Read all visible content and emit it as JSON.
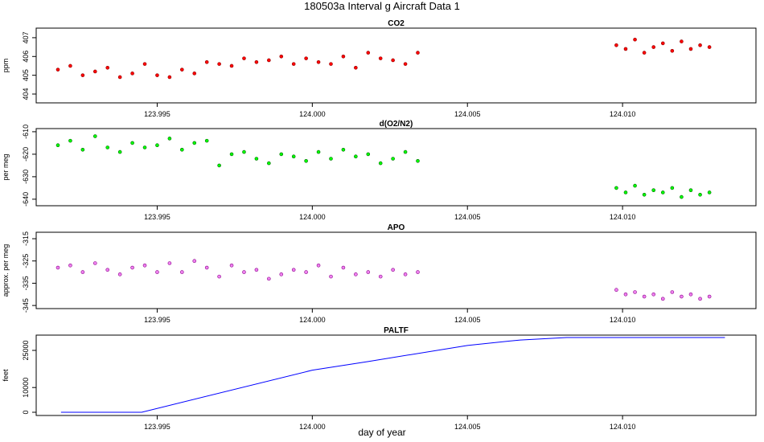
{
  "title": "180503a   Interval g Aircraft Data 1",
  "xlabel": "day of year",
  "chart_data": [
    {
      "type": "scatter",
      "title": "CO2",
      "ylabel": "ppm",
      "color": "#ff0000",
      "edge": "#8b0000",
      "x": [
        123.9918,
        123.9922,
        123.9926,
        123.993,
        123.9934,
        123.9938,
        123.9942,
        123.9946,
        123.995,
        123.9954,
        123.9958,
        123.9962,
        123.9966,
        123.997,
        123.9974,
        123.9978,
        123.9982,
        123.9986,
        123.999,
        123.9994,
        123.9998,
        124.0002,
        124.0006,
        124.001,
        124.0014,
        124.0018,
        124.0022,
        124.0026,
        124.003,
        124.0034,
        124.0098,
        124.0101,
        124.0104,
        124.0107,
        124.011,
        124.0113,
        124.0116,
        124.0119,
        124.0122,
        124.0125,
        124.0128
      ],
      "values": [
        405.3,
        405.5,
        405.0,
        405.2,
        405.4,
        404.9,
        405.1,
        405.6,
        405.0,
        404.9,
        405.3,
        405.1,
        405.7,
        405.6,
        405.5,
        405.9,
        405.7,
        405.8,
        406.0,
        405.6,
        405.9,
        405.7,
        405.6,
        406.0,
        405.4,
        406.2,
        405.9,
        405.8,
        405.6,
        406.2,
        406.6,
        406.4,
        406.9,
        406.2,
        406.5,
        406.7,
        406.3,
        406.8,
        406.4,
        406.6,
        406.5
      ],
      "xlim": [
        123.9911,
        124.0143
      ],
      "ylim": [
        403.53,
        407.51
      ],
      "xticks": [
        {
          "value": 123.995,
          "label": "123.995"
        },
        {
          "value": 124.0,
          "label": "124.000"
        },
        {
          "value": 124.005,
          "label": "124.005"
        },
        {
          "value": 124.01,
          "label": "124.010"
        }
      ],
      "yticks": [
        404,
        405,
        406,
        407
      ]
    },
    {
      "type": "scatter",
      "title": "d(O2/N2)",
      "ylabel": "per meg",
      "color": "#00ff00",
      "edge": "#006400",
      "x": [
        123.9918,
        123.9922,
        123.9926,
        123.993,
        123.9934,
        123.9938,
        123.9942,
        123.9946,
        123.995,
        123.9954,
        123.9958,
        123.9962,
        123.9966,
        123.997,
        123.9974,
        123.9978,
        123.9982,
        123.9986,
        123.999,
        123.9994,
        123.9998,
        124.0002,
        124.0006,
        124.001,
        124.0014,
        124.0018,
        124.0022,
        124.0026,
        124.003,
        124.0034,
        124.0098,
        124.0101,
        124.0104,
        124.0107,
        124.011,
        124.0113,
        124.0116,
        124.0119,
        124.0122,
        124.0125,
        124.0128
      ],
      "values": [
        -616,
        -614,
        -618,
        -612,
        -617,
        -619,
        -615,
        -617,
        -616,
        -613,
        -618,
        -615,
        -614,
        -625,
        -620,
        -619,
        -622,
        -624,
        -620,
        -621,
        -623,
        -619,
        -622,
        -618,
        -621,
        -620,
        -624,
        -622,
        -619,
        -623,
        -635,
        -637,
        -634,
        -638,
        -636,
        -637,
        -635,
        -639,
        -636,
        -638,
        -637
      ],
      "xlim": [
        123.9911,
        124.0143
      ],
      "ylim": [
        -642.9,
        -608.6
      ],
      "xticks": [
        {
          "value": 123.995,
          "label": "123.995"
        },
        {
          "value": 124.0,
          "label": "124.000"
        },
        {
          "value": 124.005,
          "label": "124.005"
        },
        {
          "value": 124.01,
          "label": "124.010"
        }
      ],
      "yticks": [
        -640,
        -630,
        -620,
        -610
      ]
    },
    {
      "type": "scatter",
      "title": "APO",
      "ylabel": "approx. per meg",
      "color": "#ee82ee",
      "edge": "#8b008b",
      "x": [
        123.9918,
        123.9922,
        123.9926,
        123.993,
        123.9934,
        123.9938,
        123.9942,
        123.9946,
        123.995,
        123.9954,
        123.9958,
        123.9962,
        123.9966,
        123.997,
        123.9974,
        123.9978,
        123.9982,
        123.9986,
        123.999,
        123.9994,
        123.9998,
        124.0002,
        124.0006,
        124.001,
        124.0014,
        124.0018,
        124.0022,
        124.0026,
        124.003,
        124.0034,
        124.0098,
        124.0101,
        124.0104,
        124.0107,
        124.011,
        124.0113,
        124.0116,
        124.0119,
        124.0122,
        124.0125,
        124.0128
      ],
      "values": [
        -328,
        -327,
        -330,
        -326,
        -329,
        -331,
        -328,
        -327,
        -330,
        -326,
        -330,
        -325,
        -328,
        -332,
        -327,
        -330,
        -329,
        -333,
        -331,
        -329,
        -330,
        -327,
        -332,
        -328,
        -331,
        -330,
        -332,
        -329,
        -331,
        -330,
        -338,
        -340,
        -339,
        -341,
        -340,
        -342,
        -339,
        -341,
        -340,
        -342,
        -341
      ],
      "xlim": [
        123.9911,
        124.0143
      ],
      "ylim": [
        -346.4,
        -312.1
      ],
      "xticks": [
        {
          "value": 123.995,
          "label": "123.995"
        },
        {
          "value": 124.0,
          "label": "124.000"
        },
        {
          "value": 124.005,
          "label": "124.005"
        },
        {
          "value": 124.01,
          "label": "124.010"
        }
      ],
      "yticks": [
        -345,
        -335,
        -325,
        -315
      ]
    },
    {
      "type": "line",
      "title": "PALTF",
      "ylabel": "feet",
      "color": "#0000ff",
      "x": [
        123.9919,
        123.9945,
        124.0,
        124.0018,
        124.005,
        124.0067,
        124.0082,
        124.0133
      ],
      "values": [
        0,
        0,
        17000,
        20500,
        27000,
        29200,
        30200,
        30200
      ],
      "xlim": [
        123.9911,
        124.0143
      ],
      "ylim": [
        -1300,
        31170
      ],
      "xticks": [
        {
          "value": 123.995,
          "label": "123.995"
        },
        {
          "value": 124.0,
          "label": "124.000"
        },
        {
          "value": 124.005,
          "label": "124.005"
        },
        {
          "value": 124.01,
          "label": "124.010"
        }
      ],
      "yticks": [
        0,
        10000,
        25000
      ]
    }
  ]
}
